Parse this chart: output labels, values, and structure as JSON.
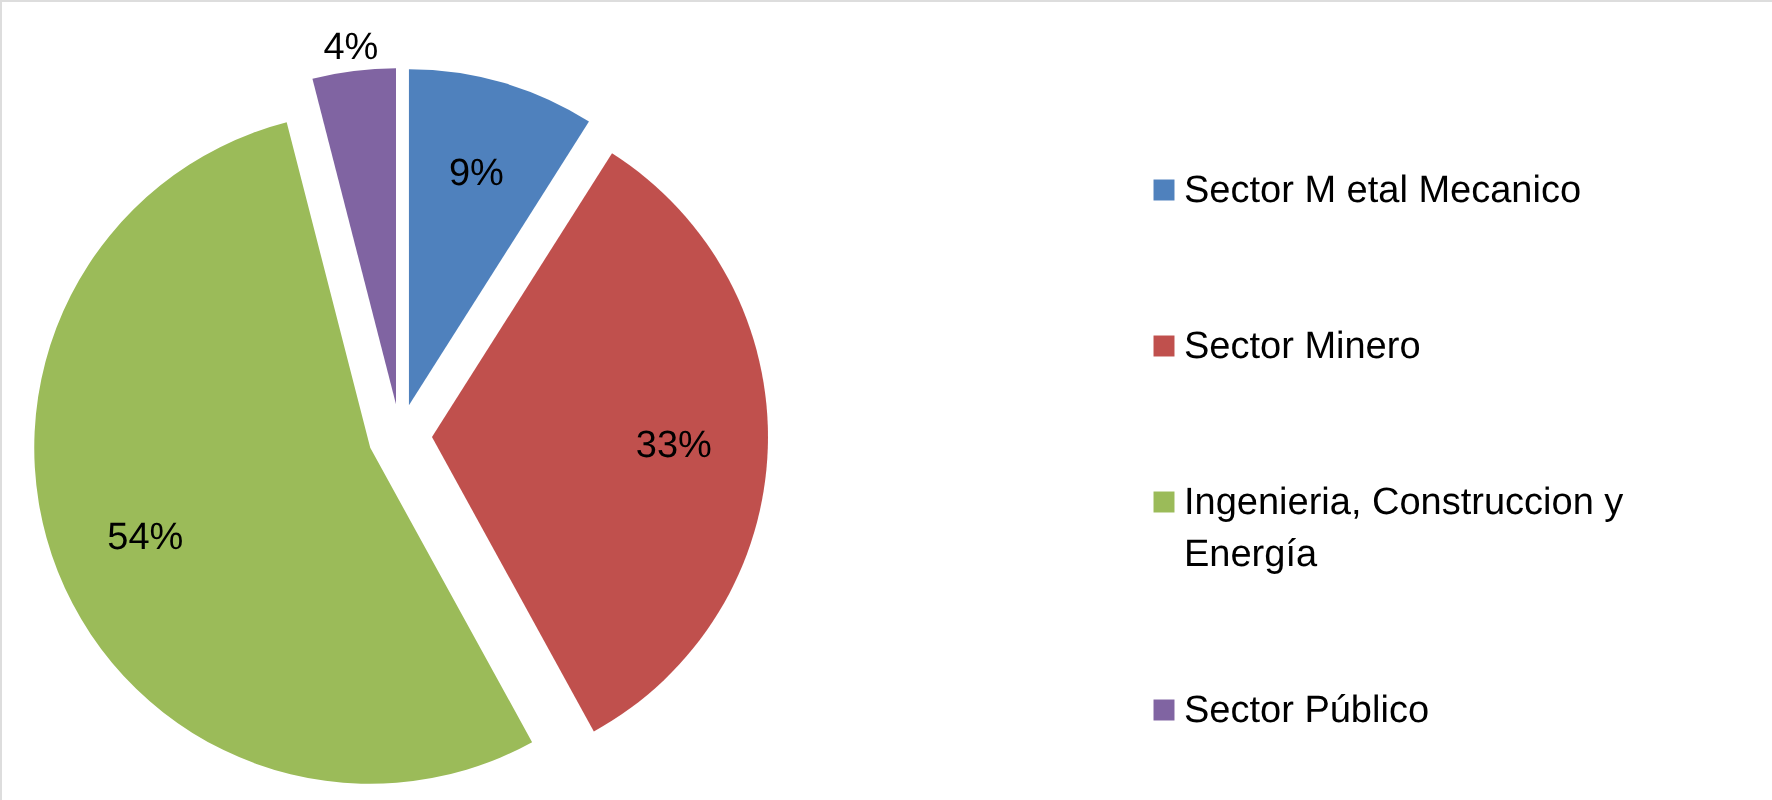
{
  "chart_data": {
    "type": "pie",
    "categories": [
      "Sector M etal Mecanico",
      "Sector Minero",
      "Ingenieria, Construccion y Energía",
      "Sector Público"
    ],
    "values": [
      9,
      33,
      54,
      4
    ],
    "value_labels": [
      "9%",
      "33%",
      "54%",
      "4%"
    ],
    "colors": [
      "#4f81bd",
      "#c0504d",
      "#9bbb59",
      "#8064a2"
    ],
    "legend": "right"
  }
}
